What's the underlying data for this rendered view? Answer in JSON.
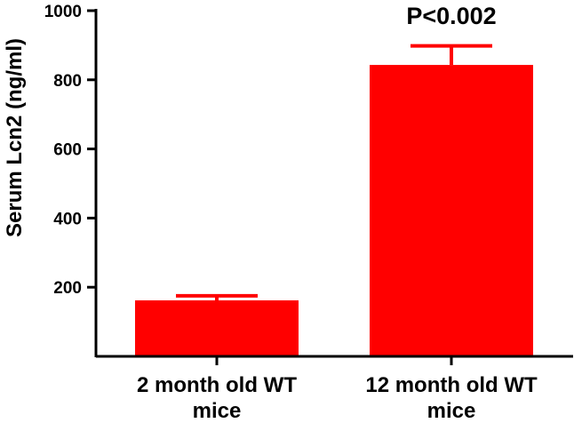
{
  "chart_data": {
    "type": "bar",
    "categories": [
      [
        "2 month old WT",
        "mice"
      ],
      [
        "12 month old WT",
        "mice"
      ]
    ],
    "values": [
      162,
      843
    ],
    "error_upper": [
      175,
      898
    ],
    "ylabel": "Serum Lcn2 (ng/ml)",
    "xlabel": "",
    "ylim": [
      0,
      1000
    ],
    "yticks": [
      200,
      400,
      600,
      800,
      1000
    ],
    "bar_color": "#ff0000",
    "annotations": [
      {
        "text": "P<0.002",
        "category_index": 1
      }
    ],
    "grid": false,
    "legend": "none"
  }
}
